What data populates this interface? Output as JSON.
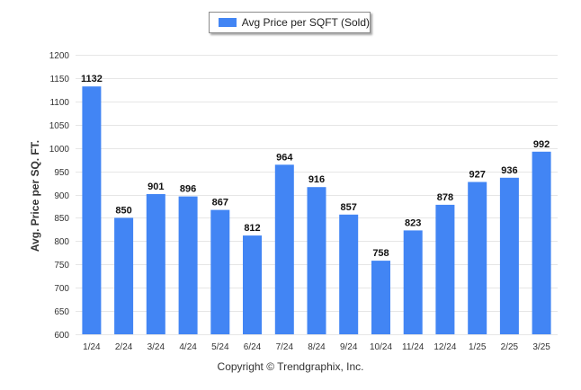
{
  "chart_data": {
    "type": "bar",
    "categories": [
      "1/24",
      "2/24",
      "3/24",
      "4/24",
      "5/24",
      "6/24",
      "7/24",
      "8/24",
      "9/24",
      "10/24",
      "11/24",
      "12/24",
      "1/25",
      "2/25",
      "3/25"
    ],
    "series": [
      {
        "name": "Avg Price per SQFT (Sold)",
        "color": "#4285f4",
        "values": [
          1132,
          850,
          901,
          896,
          867,
          812,
          964,
          916,
          857,
          758,
          823,
          878,
          927,
          936,
          992
        ]
      }
    ],
    "xlabel": "",
    "ylabel": "Avg. Price per SQ. FT.",
    "ylim": [
      600,
      1200
    ],
    "yticks": [
      600,
      650,
      700,
      750,
      800,
      850,
      900,
      950,
      1000,
      1050,
      1100,
      1150,
      1200
    ],
    "grid": true,
    "legend_position": "top-center",
    "data_labels": true
  },
  "footer": {
    "copyright": "Copyright © Trendgraphix, Inc."
  }
}
